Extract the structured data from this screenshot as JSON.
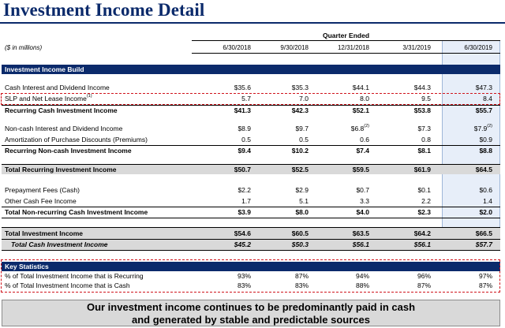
{
  "title": "Investment Income Detail",
  "period_header": "Quarter Ended",
  "units": "($ in millions)",
  "columns": [
    "6/30/2018",
    "9/30/2018",
    "12/31/2018",
    "3/31/2019",
    "6/30/2019"
  ],
  "sections": {
    "build": "Investment Income Build",
    "key_stats": "Key Statistics"
  },
  "rows": {
    "cash_interest": {
      "label": "Cash Interest and Dividend Income",
      "values": [
        "$35.6",
        "$35.3",
        "$44.1",
        "$44.3",
        "$47.3"
      ]
    },
    "slp": {
      "label": "SLP and Net Lease Income",
      "note": "(1)",
      "values": [
        "5.7",
        "7.0",
        "8.0",
        "9.5",
        "8.4"
      ]
    },
    "recurring_cash": {
      "label": "Recurring Cash Investment Income",
      "values": [
        "$41.3",
        "$42.3",
        "$52.1",
        "$53.8",
        "$55.7"
      ]
    },
    "noncash_interest": {
      "label": "Non-cash Interest and Dividend Income",
      "values": [
        "$8.9",
        "$9.7",
        "$6.8",
        "$7.3",
        "$7.9"
      ],
      "notes": [
        "",
        "",
        "(2)",
        "",
        "(2)"
      ]
    },
    "amortization": {
      "label": "Amortization of Purchase Discounts (Premiums)",
      "values": [
        "0.5",
        "0.5",
        "0.6",
        "0.8",
        "$0.9"
      ]
    },
    "recurring_noncash": {
      "label": "Recurring Non-cash Investment Income",
      "values": [
        "$9.4",
        "$10.2",
        "$7.4",
        "$8.1",
        "$8.8"
      ]
    },
    "total_recurring": {
      "label": "Total Recurring Investment Income",
      "values": [
        "$50.7",
        "$52.5",
        "$59.5",
        "$61.9",
        "$64.5"
      ]
    },
    "prepayment": {
      "label": "Prepayment Fees (Cash)",
      "values": [
        "$2.2",
        "$2.9",
        "$0.7",
        "$0.1",
        "$0.6"
      ]
    },
    "other_fee": {
      "label": "Other Cash Fee Income",
      "values": [
        "1.7",
        "5.1",
        "3.3",
        "2.2",
        "1.4"
      ]
    },
    "total_nonrecurring": {
      "label": "Total Non-recurring Cash Investment Income",
      "values": [
        "$3.9",
        "$8.0",
        "$4.0",
        "$2.3",
        "$2.0"
      ]
    },
    "total_investment": {
      "label": "Total Investment Income",
      "values": [
        "$54.6",
        "$60.5",
        "$63.5",
        "$64.2",
        "$66.5"
      ]
    },
    "total_cash": {
      "label": "Total Cash Investment Income",
      "values": [
        "$45.2",
        "$50.3",
        "$56.1",
        "$56.1",
        "$57.7"
      ]
    },
    "pct_recurring": {
      "label": "% of Total Investment Income that is Recurring",
      "values": [
        "93%",
        "87%",
        "94%",
        "96%",
        "97%"
      ]
    },
    "pct_cash": {
      "label": "% of Total Investment Income that is Cash",
      "values": [
        "83%",
        "83%",
        "88%",
        "87%",
        "87%"
      ]
    }
  },
  "footer": {
    "line1": "Our investment income continues to be predominantly paid in cash",
    "line2": "and generated by stable and predictable sources"
  },
  "colors": {
    "navy": "#0b2a6b",
    "highlight": "#e7eef9",
    "gray": "#d9d9d9",
    "callout_red": "#d0141c"
  }
}
